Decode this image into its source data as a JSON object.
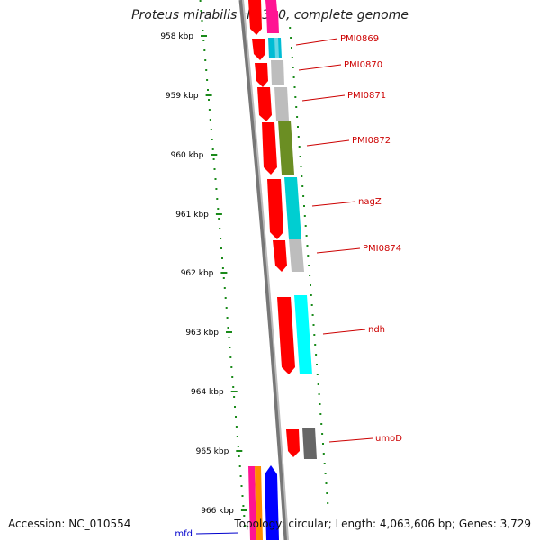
{
  "title": "Proteus mirabilis HI4320, complete genome",
  "footer": {
    "accession": "Accession: NC_010554",
    "summary": "Topology: circular; Length: 4,063,606 bp; Genes: 3,729"
  },
  "scale_labels": [
    "958 kbp",
    "959 kbp",
    "960 kbp",
    "961 kbp",
    "962 kbp",
    "963 kbp",
    "964 kbp",
    "965 kbp",
    "966 kbp"
  ],
  "genes": [
    {
      "label": "PMI0869",
      "color_gene": "#ff0000",
      "color_cds": "#00bcd4"
    },
    {
      "label": "PMI0870",
      "color_gene": "#ff0000",
      "color_cds": "#bdbdbd"
    },
    {
      "label": "PMI0871",
      "color_gene": "#ff0000",
      "color_cds": "#bdbdbd"
    },
    {
      "label": "PMI0872",
      "color_gene": "#ff0000",
      "color_cds": "#6b8e23"
    },
    {
      "label": "nagZ",
      "color_gene": "#ff0000",
      "color_cds": "#00ced1"
    },
    {
      "label": "PMI0874",
      "color_gene": "#ff0000",
      "color_cds": "#bdbdbd"
    },
    {
      "label": "ndh",
      "color_gene": "#ff0000",
      "color_cds": "#00ffff"
    },
    {
      "label": "umoD",
      "color_gene": "#ff0000",
      "color_cds": "#666666"
    },
    {
      "label": "mfd",
      "color_gene": "#0000ff",
      "color_cds": "#ff8c00"
    }
  ],
  "colors": {
    "scale": "#1a8a1a",
    "label_red": "#cc0000",
    "label_blue": "#0000cc",
    "backbone": "#888888",
    "magenta": "#ff1493"
  }
}
